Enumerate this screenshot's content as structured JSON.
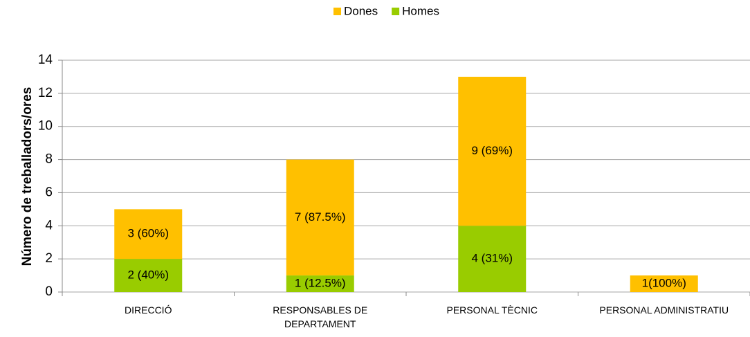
{
  "chart_data": {
    "type": "stacked_bar",
    "y_label": "Número de treballadors/ores",
    "categories": [
      "DIRECCIÓ",
      "RESPONSABLES DE DEPARTAMENT",
      "PERSONAL TÈCNIC",
      "PERSONAL ADMINISTRATIU"
    ],
    "series": [
      {
        "name": "Dones",
        "color": "#ffc000",
        "values": [
          3,
          7,
          9,
          1
        ],
        "value_labels": [
          "3 (60%)",
          "7 (87.5%)",
          "9 (69%)",
          "1(100%)"
        ]
      },
      {
        "name": "Homes",
        "color": "#99cc00",
        "values": [
          2,
          1,
          4,
          0
        ],
        "value_labels": [
          "2 (40%)",
          "1 (12.5%)",
          "4 (31%)",
          null
        ]
      }
    ],
    "stack_order": "bottom-last-series",
    "ylim": [
      0,
      14
    ],
    "yticks": [
      0,
      2,
      4,
      6,
      8,
      10,
      12,
      14
    ],
    "grid": true,
    "legend": "top"
  }
}
